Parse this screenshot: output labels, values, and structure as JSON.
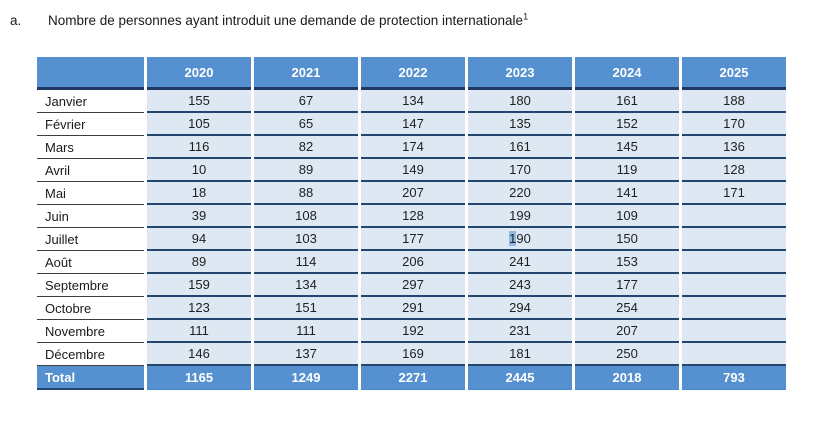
{
  "heading": {
    "marker": "a.",
    "title": "Nombre de personnes ayant introduit une demande de protection internationale",
    "footnote_ref": "1"
  },
  "colors": {
    "header_blue": "#5590D0",
    "light_blue_cell": "#DEE8F3",
    "navy_border": "#24456F",
    "month_border": "#3d3d3d",
    "selection_highlight": "#8FB8E2",
    "header_text": "#ffffff"
  },
  "table": {
    "corner_label": "",
    "years": [
      "2020",
      "2021",
      "2022",
      "2023",
      "2024",
      "2025"
    ],
    "rows": [
      {
        "month": "Janvier",
        "values": [
          "155",
          "67",
          "134",
          "180",
          "161",
          "188"
        ]
      },
      {
        "month": "Février",
        "values": [
          "105",
          "65",
          "147",
          "135",
          "152",
          "170"
        ]
      },
      {
        "month": "Mars",
        "values": [
          "116",
          "82",
          "174",
          "161",
          "145",
          "136"
        ]
      },
      {
        "month": "Avril",
        "values": [
          "10",
          "89",
          "149",
          "170",
          "119",
          "128"
        ]
      },
      {
        "month": "Mai",
        "values": [
          "18",
          "88",
          "207",
          "220",
          "141",
          "171"
        ]
      },
      {
        "month": "Juin",
        "values": [
          "39",
          "108",
          "128",
          "199",
          "109",
          ""
        ]
      },
      {
        "month": "Juillet",
        "values": [
          "94",
          "103",
          "177",
          "190",
          "150",
          ""
        ]
      },
      {
        "month": "Août",
        "values": [
          "89",
          "114",
          "206",
          "241",
          "153",
          ""
        ]
      },
      {
        "month": "Septembre",
        "values": [
          "159",
          "134",
          "297",
          "243",
          "177",
          ""
        ]
      },
      {
        "month": "Octobre",
        "values": [
          "123",
          "151",
          "291",
          "294",
          "254",
          ""
        ]
      },
      {
        "month": "Novembre",
        "values": [
          "111",
          "111",
          "192",
          "231",
          "207",
          ""
        ]
      },
      {
        "month": "Décembre",
        "values": [
          "146",
          "137",
          "169",
          "181",
          "250",
          ""
        ]
      }
    ],
    "total": {
      "label": "Total",
      "values": [
        "1165",
        "1249",
        "2271",
        "2445",
        "2018",
        "793"
      ]
    },
    "selection": {
      "row_index": 6,
      "col_index": 3,
      "selected_text": "1",
      "rest_text": "90"
    }
  }
}
